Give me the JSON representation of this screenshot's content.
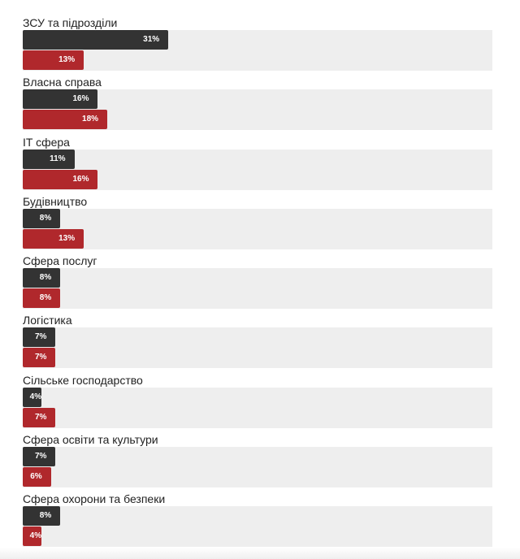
{
  "chart_data": {
    "type": "bar",
    "orientation": "horizontal",
    "unit": "%",
    "xlim": [
      0,
      100
    ],
    "categories": [
      "ЗСУ та підрозділи",
      "Власна справа",
      "IT сфера",
      "Будівництво",
      "Сфера послуг",
      "Логістика",
      "Сільське господарство",
      "Сфера освіти та культури",
      "Сфера охорони та безпеки"
    ],
    "series": [
      {
        "color": "#333333",
        "values": [
          31,
          16,
          11,
          8,
          8,
          7,
          4,
          7,
          8
        ]
      },
      {
        "color": "#b0282c",
        "values": [
          13,
          18,
          16,
          13,
          8,
          7,
          7,
          6,
          4
        ]
      }
    ],
    "track_color": "#eeeeee",
    "grid": false
  }
}
